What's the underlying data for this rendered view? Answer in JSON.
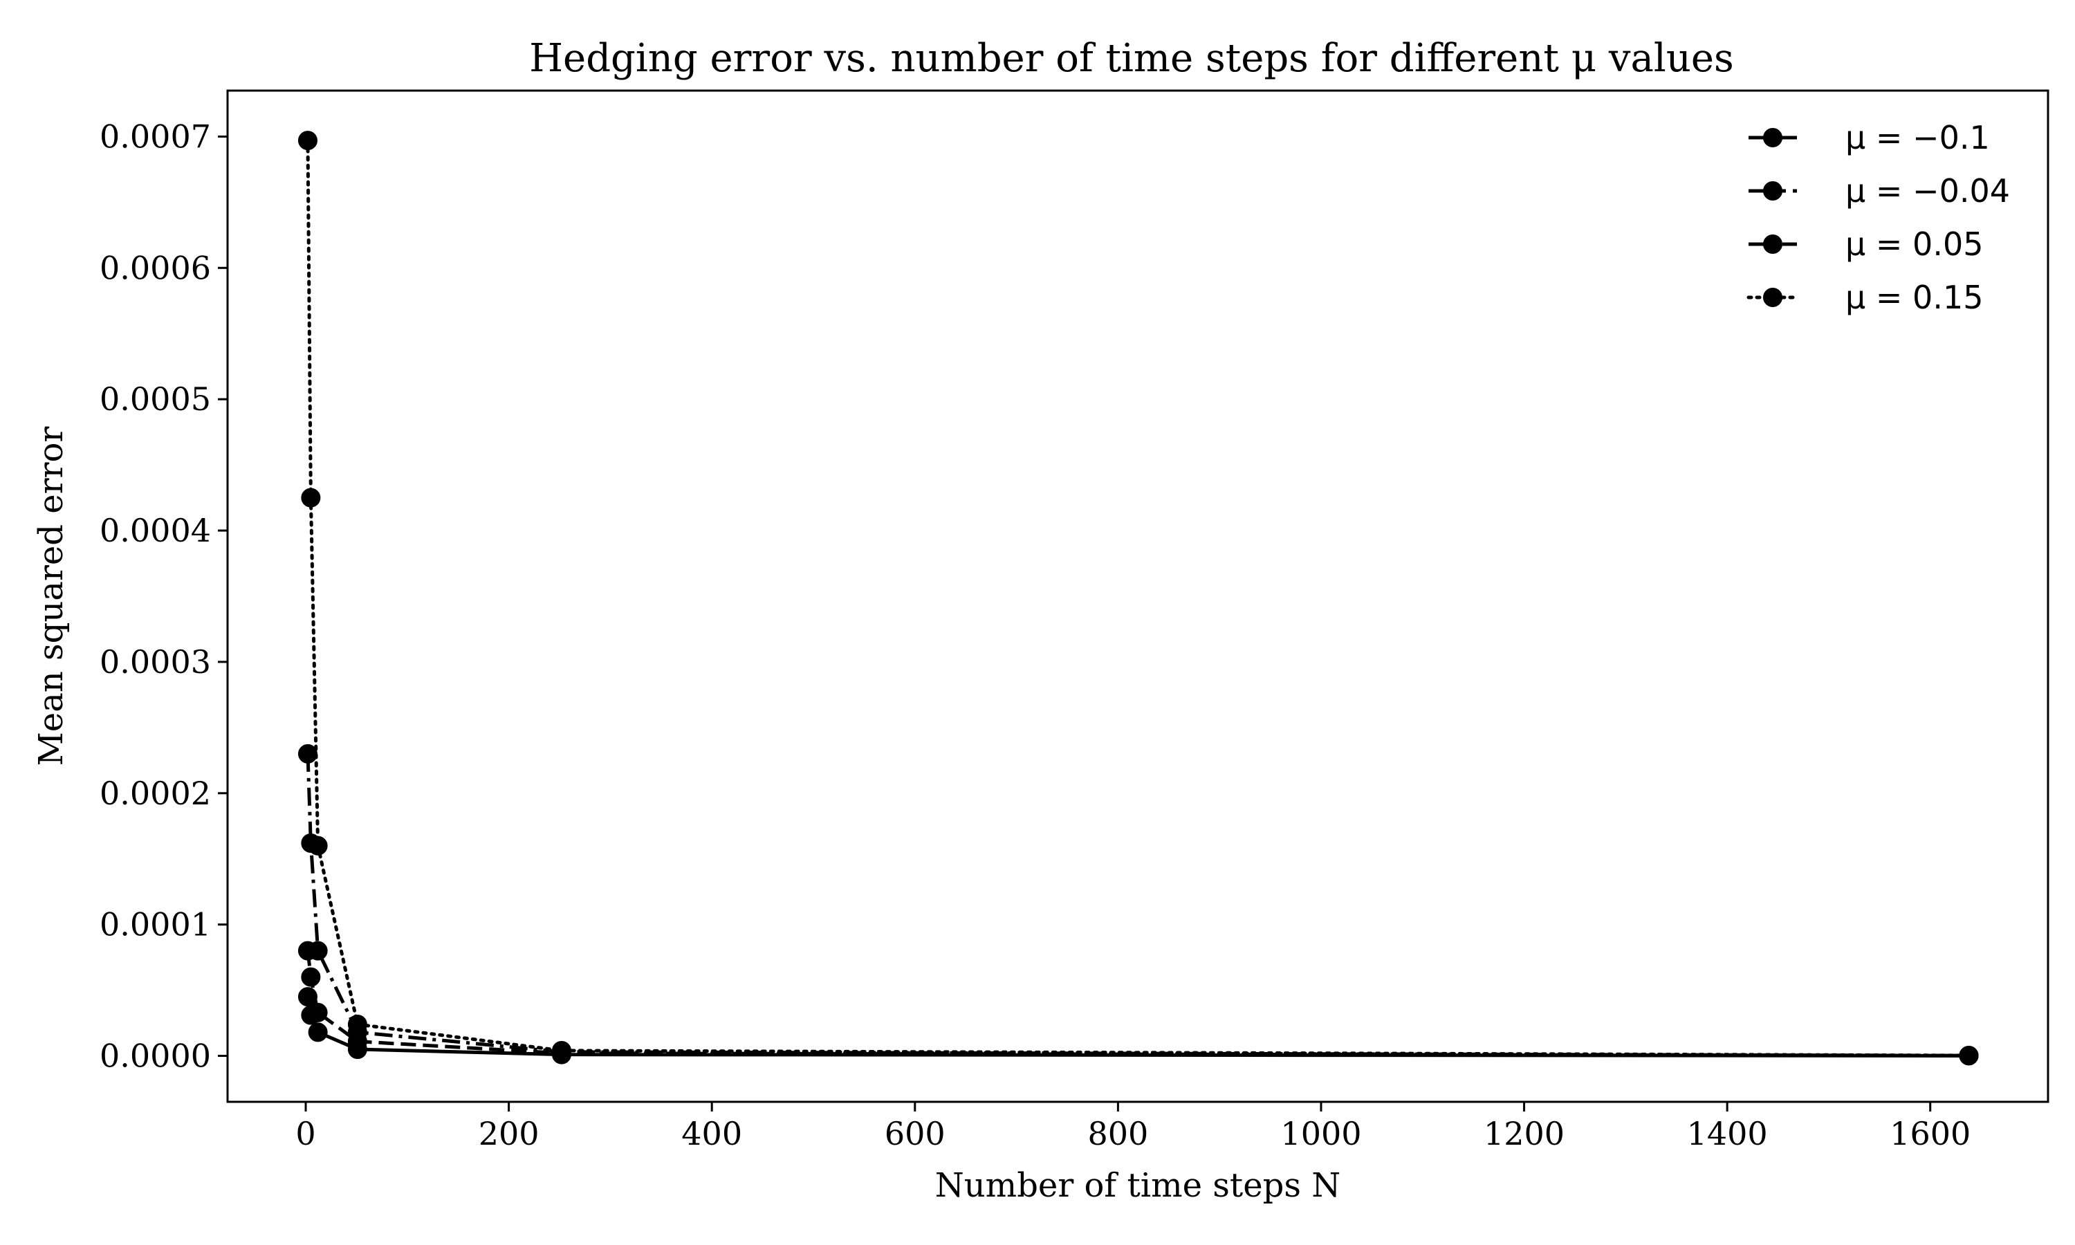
{
  "chart_data": {
    "type": "line",
    "title": "Hedging error vs. number of time steps for different μ values",
    "xlabel": "Number of time steps N",
    "ylabel": "Mean squared error",
    "xlim": [
      -77,
      1716
    ],
    "ylim": [
      -3.5e-05,
      0.000735
    ],
    "x_ticks": [
      0,
      200,
      400,
      600,
      800,
      1000,
      1200,
      1400,
      1600
    ],
    "x_tick_labels": [
      "0",
      "200",
      "400",
      "600",
      "800",
      "1000",
      "1200",
      "1400",
      "1600"
    ],
    "y_ticks": [
      0,
      0.0001,
      0.0002,
      0.0003,
      0.0004,
      0.0005,
      0.0006,
      0.0007
    ],
    "y_tick_labels": [
      "0.0000",
      "0.0001",
      "0.0002",
      "0.0003",
      "0.0004",
      "0.0005",
      "0.0006",
      "0.0007"
    ],
    "legend_position": "top-right",
    "grid": false,
    "series": [
      {
        "name": "μ = −0.1",
        "line_style": "solid",
        "color": "#000000",
        "x": [
          2,
          5,
          12,
          51,
          252,
          1638
        ],
        "y": [
          4.5e-05,
          3.1e-05,
          1.8e-05,
          5e-06,
          1e-06,
          1e-07
        ]
      },
      {
        "name": "μ = −0.04",
        "line_style": "dashed",
        "color": "#000000",
        "x": [
          2,
          5,
          12,
          51,
          252,
          1638
        ],
        "y": [
          8e-05,
          6e-05,
          3.3e-05,
          1.1e-05,
          2e-06,
          2e-07
        ]
      },
      {
        "name": "μ = 0.05",
        "line_style": "dashdot",
        "color": "#000000",
        "x": [
          2,
          5,
          12,
          51,
          252,
          1638
        ],
        "y": [
          0.00023,
          0.000162,
          8e-05,
          1.8e-05,
          3e-06,
          2e-07
        ]
      },
      {
        "name": "μ = 0.15",
        "line_style": "dotted",
        "color": "#000000",
        "x": [
          2,
          5,
          12,
          51,
          252,
          1638
        ],
        "y": [
          0.000697,
          0.000425,
          0.00016,
          2.4e-05,
          4e-06,
          3e-07
        ]
      }
    ]
  }
}
